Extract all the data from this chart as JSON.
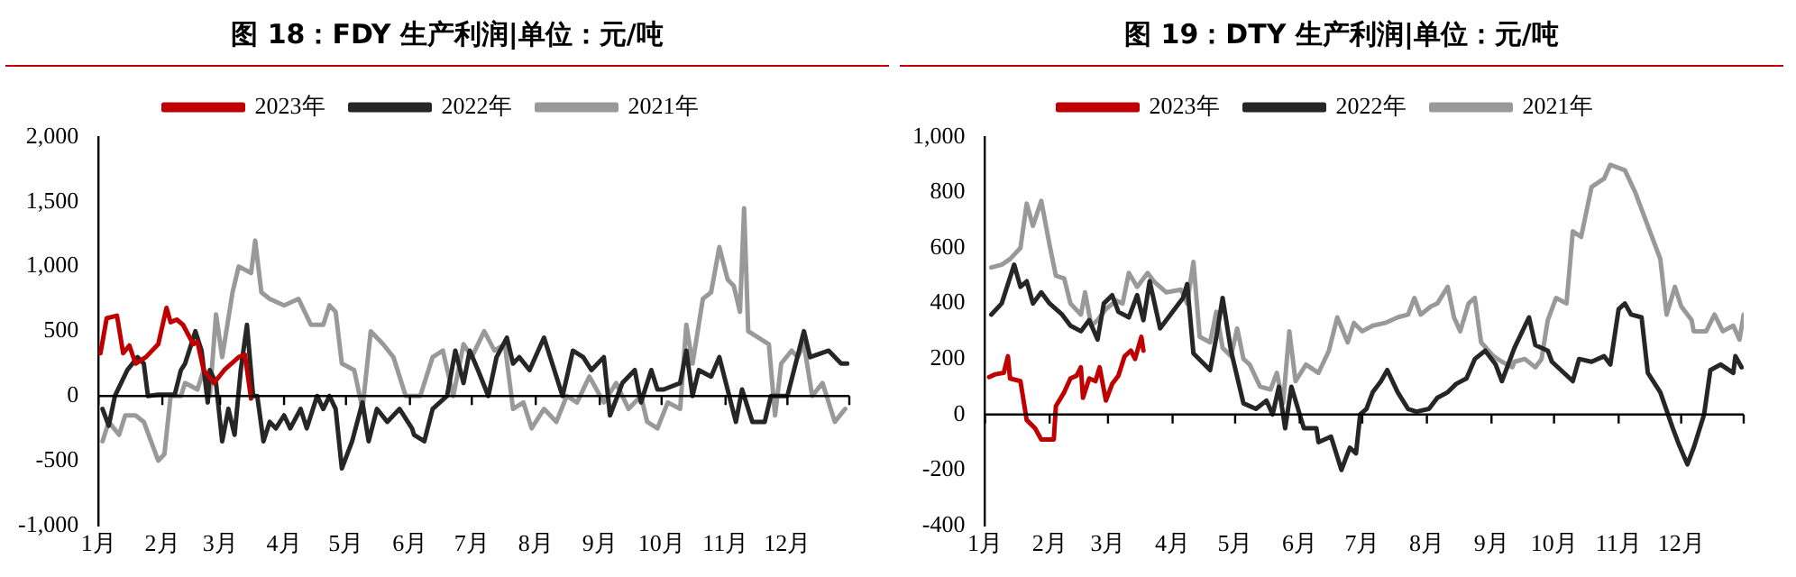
{
  "chart_data": [
    {
      "type": "line",
      "title": "图 18：FDY 生产利润|单位：元/吨",
      "legend": "top",
      "xlim": [
        "--01-01",
        "--12-31"
      ],
      "xticks": [
        {
          "value": "--01-01",
          "label": "1月"
        },
        {
          "value": "--02-01",
          "label": "2月"
        },
        {
          "value": "--03-01",
          "label": "3月"
        },
        {
          "value": "--04-01",
          "label": "4月"
        },
        {
          "value": "--05-01",
          "label": "5月"
        },
        {
          "value": "--06-01",
          "label": "6月"
        },
        {
          "value": "--07-01",
          "label": "7月"
        },
        {
          "value": "--08-01",
          "label": "8月"
        },
        {
          "value": "--09-01",
          "label": "9月"
        },
        {
          "value": "--10-01",
          "label": "10月"
        },
        {
          "value": "--11-01",
          "label": "11月"
        },
        {
          "value": "--12-01",
          "label": "12月"
        },
        {
          "value": "--12-31",
          "label": null
        }
      ],
      "ylim": [
        -1000,
        2000
      ],
      "yticks": [
        {
          "value": -1000,
          "label": "-1,000"
        },
        -500,
        0,
        500,
        {
          "value": 1000,
          "label": "1,000"
        },
        {
          "value": 1500,
          "label": "1,500"
        },
        {
          "value": 2000,
          "label": "2,000"
        }
      ],
      "ref_lines": [
        {
          "axis": "y",
          "value": 0
        }
      ],
      "series": [
        {
          "name": "2023年",
          "color": "#c00000",
          "x": [
            "--01-02",
            "--01-05",
            "--01-10",
            "--01-13",
            "--01-16",
            "--01-19",
            "--01-24",
            "--01-30",
            "--02-03",
            "--02-05",
            "--02-08",
            "--02-11",
            "--02-16",
            "--02-18",
            "--02-21",
            "--02-26",
            "--03-03",
            "--03-10",
            "--03-13",
            "--03-16"
          ],
          "values": [
            330,
            600,
            620,
            330,
            390,
            250,
            300,
            400,
            680,
            570,
            590,
            550,
            400,
            420,
            200,
            100,
            200,
            300,
            320,
            -20
          ]
        },
        {
          "name": "2022年",
          "color": "#262626",
          "x": [
            "--01-03",
            "--01-06",
            "--01-09",
            "--01-12",
            "--01-15",
            "--01-20",
            "--01-23",
            "--01-25",
            "--01-30",
            "--02-07",
            "--02-10",
            "--02-12",
            "--02-17",
            "--02-20",
            "--02-23",
            "--02-24",
            "--02-27",
            "--03-02",
            "--03-05",
            "--03-08",
            "--03-11",
            "--03-14",
            "--03-17",
            "--03-19",
            "--03-22",
            "--03-25",
            "--03-28",
            "--04-01",
            "--04-04",
            "--04-09",
            "--04-12",
            "--04-17",
            "--04-20",
            "--04-23",
            "--04-26",
            "--04-29",
            "--05-04",
            "--05-09",
            "--05-12",
            "--05-16",
            "--05-21",
            "--05-27",
            "--06-02",
            "--06-03",
            "--06-08",
            "--06-12",
            "--06-19",
            "--06-23",
            "--06-27",
            "--06-30",
            "--07-04",
            "--07-09",
            "--07-13",
            "--07-18",
            "--07-21",
            "--07-24",
            "--07-29",
            "--08-05",
            "--08-10",
            "--08-14",
            "--08-19",
            "--08-24",
            "--08-28",
            "--09-03",
            "--09-06",
            "--09-12",
            "--09-18",
            "--09-21",
            "--09-26",
            "--09-29",
            "--10-02",
            "--10-10",
            "--10-13",
            "--10-16",
            "--10-19",
            "--10-25",
            "--10-29",
            "--11-02",
            "--11-06",
            "--11-09",
            "--11-14",
            "--11-20",
            "--11-23",
            "--12-01",
            "--12-09",
            "--12-12",
            "--12-21",
            "--12-27",
            "--12-30"
          ],
          "values": [
            -100,
            -230,
            0,
            100,
            200,
            300,
            250,
            0,
            10,
            10,
            200,
            250,
            500,
            350,
            -50,
            200,
            100,
            -350,
            -100,
            -300,
            200,
            550,
            0,
            0,
            -350,
            -200,
            -250,
            -150,
            -250,
            -100,
            -250,
            0,
            -100,
            0,
            -100,
            -560,
            -350,
            -50,
            -350,
            -100,
            -200,
            -100,
            -250,
            -300,
            -350,
            -100,
            0,
            350,
            100,
            350,
            200,
            0,
            300,
            450,
            250,
            300,
            200,
            450,
            200,
            0,
            350,
            300,
            200,
            300,
            -150,
            100,
            200,
            -50,
            200,
            50,
            50,
            100,
            350,
            0,
            200,
            150,
            300,
            50,
            -200,
            50,
            -200,
            -200,
            0,
            0,
            500,
            300,
            350,
            250,
            250
          ]
        },
        {
          "name": "2021年",
          "color": "#999999",
          "x": [
            "--01-03",
            "--01-06",
            "--01-11",
            "--01-14",
            "--01-19",
            "--01-23",
            "--01-30",
            "--02-02",
            "--02-05",
            "--02-10",
            "--02-12",
            "--02-18",
            "--02-21",
            "--02-24",
            "--02-27",
            "--03-02",
            "--03-07",
            "--03-10",
            "--03-16",
            "--03-18",
            "--03-21",
            "--03-25",
            "--04-01",
            "--04-08",
            "--04-14",
            "--04-20",
            "--04-23",
            "--04-26",
            "--04-29",
            "--05-05",
            "--05-09",
            "--05-13",
            "--05-19",
            "--05-24",
            "--05-30",
            "--06-06",
            "--06-12",
            "--06-17",
            "--06-22",
            "--06-27",
            "--07-01",
            "--07-07",
            "--07-12",
            "--07-17",
            "--07-21",
            "--07-26",
            "--07-30",
            "--08-05",
            "--08-11",
            "--08-16",
            "--08-21",
            "--08-27",
            "--09-03",
            "--09-09",
            "--09-15",
            "--09-21",
            "--09-24",
            "--09-29",
            "--10-04",
            "--10-10",
            "--10-13",
            "--10-16",
            "--10-21",
            "--10-25",
            "--10-29",
            "--11-02",
            "--11-05",
            "--11-08",
            "--11-10",
            "--11-12",
            "--11-17",
            "--11-22",
            "--11-25",
            "--11-28",
            "--12-03",
            "--12-06",
            "--12-09",
            "--12-13",
            "--12-18",
            "--12-24",
            "--12-29"
          ],
          "values": [
            -350,
            -200,
            -300,
            -150,
            -150,
            -200,
            -500,
            -450,
            0,
            0,
            100,
            50,
            200,
            0,
            630,
            300,
            800,
            1000,
            950,
            1200,
            800,
            750,
            700,
            750,
            550,
            550,
            700,
            650,
            250,
            200,
            -100,
            500,
            400,
            300,
            0,
            0,
            300,
            350,
            0,
            400,
            300,
            500,
            350,
            400,
            -100,
            -50,
            -250,
            -100,
            -200,
            0,
            -50,
            150,
            -50,
            100,
            -100,
            0,
            -200,
            -250,
            -50,
            -100,
            550,
            250,
            750,
            800,
            1150,
            900,
            850,
            650,
            1450,
            500,
            450,
            400,
            -150,
            250,
            350,
            300,
            400,
            0,
            100,
            -200,
            -100
          ]
        }
      ]
    },
    {
      "type": "line",
      "title": "图 19：DTY 生产利润|单位：元/吨",
      "legend": "top",
      "xlim": [
        "--01-01",
        "--12-31"
      ],
      "xticks": [
        {
          "value": "--01-01",
          "label": "1月"
        },
        {
          "value": "--02-01",
          "label": "2月"
        },
        {
          "value": "--03-01",
          "label": "3月"
        },
        {
          "value": "--04-01",
          "label": "4月"
        },
        {
          "value": "--05-01",
          "label": "5月"
        },
        {
          "value": "--06-01",
          "label": "6月"
        },
        {
          "value": "--07-01",
          "label": "7月"
        },
        {
          "value": "--08-01",
          "label": "8月"
        },
        {
          "value": "--09-01",
          "label": "9月"
        },
        {
          "value": "--10-01",
          "label": "10月"
        },
        {
          "value": "--11-01",
          "label": "11月"
        },
        {
          "value": "--12-01",
          "label": "12月"
        },
        {
          "value": "--12-31",
          "label": null
        }
      ],
      "ylim": [
        -400,
        1000
      ],
      "yticks": [
        -400,
        -200,
        0,
        200,
        400,
        600,
        800,
        {
          "value": 1000,
          "label": "1,000"
        }
      ],
      "ref_lines": [
        {
          "axis": "y",
          "value": 0
        }
      ],
      "series": [
        {
          "name": "2023年",
          "color": "#c00000",
          "x": [
            "--01-03",
            "--01-06",
            "--01-10",
            "--01-12",
            "--01-13",
            "--01-18",
            "--01-21",
            "--01-25",
            "--01-28",
            "--02-03",
            "--02-04",
            "--02-08",
            "--02-11",
            "--02-14",
            "--02-16",
            "--02-17",
            "--02-20",
            "--02-23",
            "--02-25",
            "--02-28",
            "--03-03",
            "--03-06",
            "--03-09",
            "--03-12",
            "--03-14",
            "--03-17",
            "--03-18"
          ],
          "values": [
            135,
            145,
            150,
            210,
            130,
            120,
            -20,
            -50,
            -90,
            -90,
            30,
            80,
            130,
            140,
            170,
            60,
            130,
            120,
            170,
            50,
            110,
            140,
            210,
            230,
            200,
            280,
            230
          ]
        },
        {
          "name": "2022年",
          "color": "#262626",
          "x": [
            "--01-04",
            "--01-09",
            "--01-15",
            "--01-18",
            "--01-21",
            "--01-24",
            "--01-28",
            "--02-01",
            "--02-07",
            "--02-11",
            "--02-16",
            "--02-20",
            "--02-24",
            "--02-27",
            "--03-03",
            "--03-06",
            "--03-11",
            "--03-15",
            "--03-18",
            "--03-21",
            "--03-26",
            "--04-02",
            "--04-06",
            "--04-08",
            "--04-11",
            "--04-15",
            "--04-19",
            "--04-22",
            "--04-25",
            "--04-29",
            "--05-05",
            "--05-11",
            "--05-16",
            "--05-19",
            "--05-22",
            "--05-25",
            "--05-28",
            "--06-03",
            "--06-09",
            "--06-10",
            "--06-16",
            "--06-21",
            "--06-25",
            "--06-28",
            "--06-30",
            "--07-03",
            "--07-06",
            "--07-10",
            "--07-13",
            "--07-18",
            "--07-23",
            "--07-27",
            "--08-02",
            "--08-06",
            "--08-11",
            "--08-15",
            "--08-20",
            "--08-24",
            "--08-29",
            "--09-03",
            "--09-06",
            "--09-12",
            "--09-19",
            "--09-22",
            "--09-28",
            "--09-30",
            "--10-10",
            "--10-13",
            "--10-19",
            "--10-25",
            "--10-28",
            "--11-01",
            "--11-04",
            "--11-07",
            "--11-12",
            "--11-15",
            "--11-21",
            "--11-27",
            "--11-30",
            "--12-04",
            "--12-07",
            "--12-12",
            "--12-15",
            "--12-20",
            "--12-26",
            "--12-27",
            "--12-30"
          ],
          "values": [
            360,
            400,
            540,
            460,
            480,
            400,
            440,
            400,
            360,
            320,
            300,
            340,
            270,
            400,
            430,
            370,
            350,
            430,
            340,
            480,
            310,
            380,
            420,
            470,
            220,
            190,
            160,
            280,
            420,
            230,
            40,
            20,
            50,
            0,
            100,
            -50,
            100,
            -50,
            -50,
            -100,
            -80,
            -200,
            -120,
            -140,
            0,
            20,
            80,
            120,
            160,
            80,
            20,
            10,
            20,
            60,
            80,
            110,
            130,
            200,
            230,
            180,
            120,
            240,
            350,
            250,
            230,
            190,
            120,
            200,
            190,
            210,
            180,
            380,
            400,
            360,
            350,
            150,
            80,
            -50,
            -110,
            -180,
            -120,
            0,
            160,
            180,
            150,
            210,
            170
          ]
        },
        {
          "name": "2021年",
          "color": "#999999",
          "x": [
            "--01-04",
            "--01-09",
            "--01-13",
            "--01-18",
            "--01-21",
            "--01-24",
            "--01-28",
            "--02-01",
            "--02-04",
            "--02-08",
            "--02-11",
            "--02-16",
            "--02-18",
            "--02-21",
            "--02-24",
            "--02-28",
            "--03-05",
            "--03-08",
            "--03-11",
            "--03-15",
            "--03-20",
            "--03-23",
            "--03-29",
            "--04-05",
            "--04-08",
            "--04-11",
            "--04-14",
            "--04-19",
            "--04-22",
            "--04-25",
            "--04-29",
            "--05-02",
            "--05-05",
            "--05-08",
            "--05-13",
            "--05-18",
            "--05-21",
            "--05-24",
            "--05-27",
            "--05-30",
            "--06-04",
            "--06-10",
            "--06-15",
            "--06-19",
            "--06-24",
            "--06-27",
            "--07-01",
            "--07-06",
            "--07-12",
            "--07-18",
            "--07-23",
            "--07-26",
            "--07-29",
            "--08-03",
            "--08-06",
            "--08-11",
            "--08-14",
            "--08-17",
            "--08-21",
            "--08-24",
            "--08-27",
            "--09-02",
            "--09-06",
            "--09-11",
            "--09-12",
            "--09-17",
            "--09-22",
            "--09-25",
            "--09-28",
            "--10-02",
            "--10-07",
            "--10-10",
            "--10-14",
            "--10-19",
            "--10-25",
            "--10-28",
            "--11-04",
            "--11-09",
            "--11-12",
            "--11-16",
            "--11-21",
            "--11-24",
            "--11-28",
            "--12-01",
            "--12-06",
            "--12-07",
            "--12-13",
            "--12-17",
            "--12-21",
            "--12-26",
            "--12-29",
            "--12-31"
          ],
          "values": [
            530,
            540,
            560,
            600,
            760,
            680,
            770,
            610,
            500,
            490,
            400,
            360,
            440,
            320,
            340,
            380,
            410,
            400,
            510,
            460,
            510,
            480,
            440,
            450,
            400,
            550,
            280,
            260,
            370,
            240,
            210,
            310,
            200,
            180,
            100,
            90,
            150,
            40,
            300,
            120,
            180,
            150,
            230,
            350,
            260,
            330,
            300,
            320,
            330,
            350,
            360,
            420,
            360,
            390,
            400,
            460,
            350,
            300,
            400,
            420,
            260,
            210,
            190,
            170,
            190,
            200,
            170,
            200,
            340,
            420,
            400,
            660,
            640,
            820,
            850,
            900,
            880,
            800,
            740,
            660,
            560,
            360,
            460,
            390,
            340,
            300,
            300,
            360,
            300,
            320,
            270,
            360
          ]
        }
      ]
    }
  ]
}
